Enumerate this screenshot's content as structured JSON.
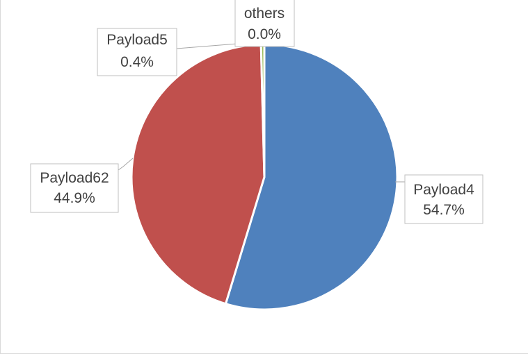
{
  "chart_data": {
    "type": "pie",
    "title": "",
    "slices": [
      {
        "name": "Payload4",
        "value": 54.7,
        "label": "54.7%",
        "color": "#4f81bd"
      },
      {
        "name": "Payload62",
        "value": 44.9,
        "label": "44.9%",
        "color": "#c0504d"
      },
      {
        "name": "Payload5",
        "value": 0.4,
        "label": "0.4%",
        "color": "#9bbb59"
      },
      {
        "name": "others",
        "value": 0.0,
        "label": "0.0%",
        "color": "#8064a2"
      }
    ],
    "start_angle_deg": 0,
    "direction": "clockwise",
    "legend": "none",
    "data_labels": "outside with leader lines"
  }
}
